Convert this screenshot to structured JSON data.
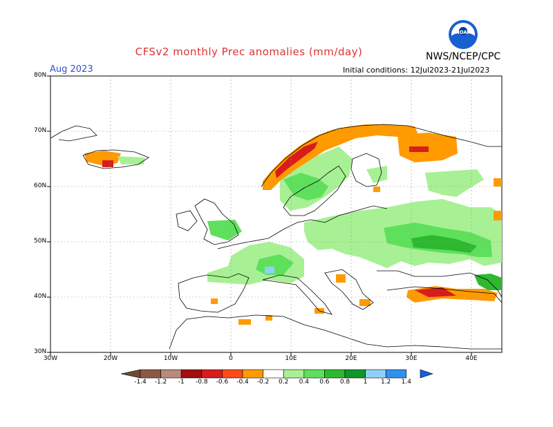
{
  "header": {
    "title": "CFSv2 monthly Prec anomalies (mm/day)",
    "org": "NWS/NCEP/CPC",
    "month": "Aug 2023",
    "initial_conditions": "Initial conditions: 12Jul2023-21Jul2023",
    "logo_text": "NOAA"
  },
  "axes": {
    "lat_labels": [
      "80N",
      "70N",
      "60N",
      "50N",
      "40N",
      "30N"
    ],
    "lon_labels": [
      "30W",
      "20W",
      "10W",
      "0",
      "10E",
      "20E",
      "30E",
      "40E"
    ]
  },
  "colorbar": {
    "labels": [
      "-1.4",
      "-1.2",
      "-1",
      "-0.8",
      "-0.6",
      "-0.4",
      "-0.2",
      "0.2",
      "0.4",
      "0.6",
      "0.8",
      "1",
      "1.2",
      "1.4"
    ],
    "colors": [
      "#6e4a36",
      "#8b5a44",
      "#b88a7c",
      "#a01010",
      "#d81c1c",
      "#ff4a1a",
      "#ff9a00",
      "#ffffff",
      "#a8f094",
      "#5ee05c",
      "#2eb830",
      "#10962a",
      "#90d0f8",
      "#3090f0",
      "#1060e0"
    ]
  },
  "chart_data": {
    "type": "map",
    "lon_range": [
      -30,
      45
    ],
    "lat_range": [
      30,
      80
    ],
    "grid": true,
    "anomaly_regions": [
      {
        "region": "Norway coast",
        "sign": "dry",
        "level": "-0.2 to -1.0"
      },
      {
        "region": "Northern Scandinavia / Kola",
        "sign": "dry",
        "level": "-0.2 to -0.6"
      },
      {
        "region": "Iceland south",
        "sign": "dry",
        "level": "-0.2 to -1.0"
      },
      {
        "region": "Turkey north coast",
        "sign": "dry",
        "level": "-0.2 to -0.8"
      },
      {
        "region": "Central Europe",
        "sign": "wet",
        "level": "0.2 to 0.6"
      },
      {
        "region": "Eastern Europe / Ukraine",
        "sign": "wet",
        "level": "0.2 to 0.8"
      },
      {
        "region": "Southern Sweden / Finland",
        "sign": "wet",
        "level": "0.2 to 0.6"
      },
      {
        "region": "Alps",
        "sign": "wet",
        "level": "0.4 to 1.2"
      },
      {
        "region": "Caucasus",
        "sign": "wet",
        "level": "0.4 to 0.8"
      }
    ]
  }
}
